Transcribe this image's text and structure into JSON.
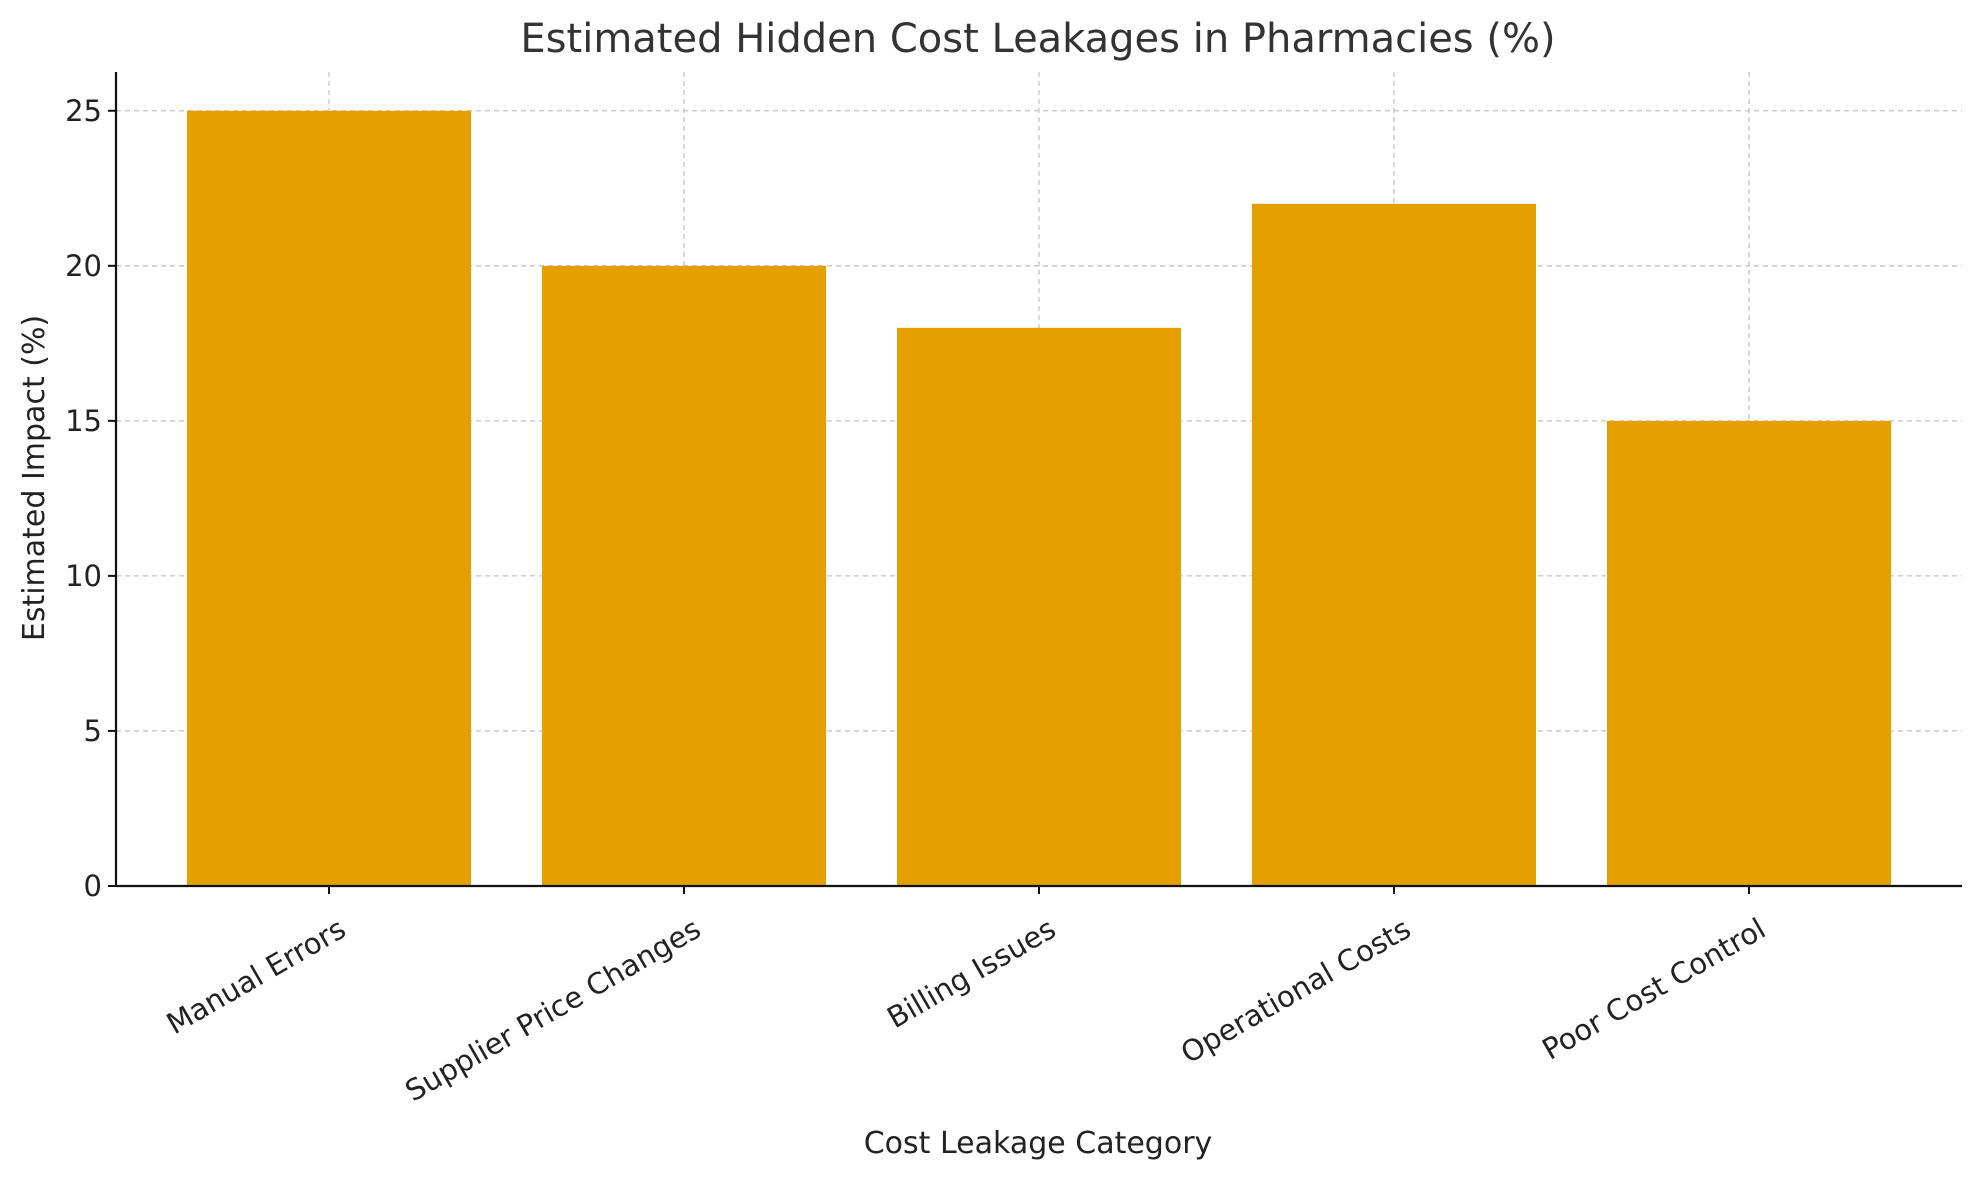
{
  "chart_data": {
    "type": "bar",
    "title": "Estimated Hidden Cost Leakages in Pharmacies (%)",
    "xlabel": "Cost Leakage Category",
    "ylabel": "Estimated Impact (%)",
    "categories": [
      "Manual Errors",
      "Supplier Price Changes",
      "Billing Issues",
      "Operational Costs",
      "Poor Cost Control"
    ],
    "values": [
      25,
      20,
      18,
      22,
      15
    ],
    "ylim": [
      0,
      26.25
    ],
    "yticks": [
      0,
      5,
      10,
      15,
      20,
      25
    ],
    "grid": true,
    "bar_color": "#E5A000",
    "x_tick_rotation": 30
  }
}
